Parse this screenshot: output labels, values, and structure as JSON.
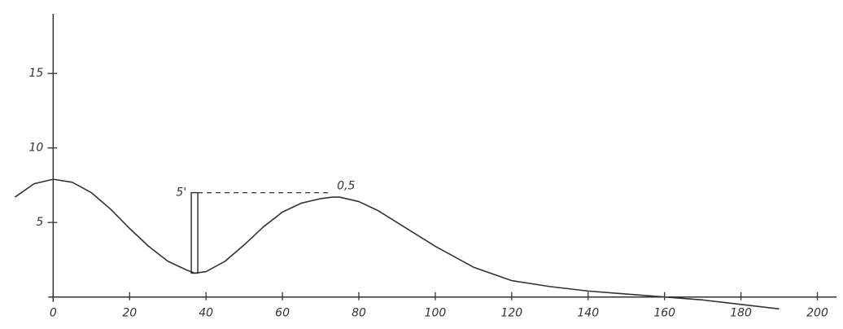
{
  "chart_data": {
    "type": "line",
    "x": [
      -10,
      -5,
      0,
      5,
      10,
      15,
      20,
      25,
      30,
      35,
      37,
      40,
      45,
      50,
      55,
      60,
      65,
      70,
      73,
      75,
      80,
      85,
      90,
      95,
      100,
      110,
      120,
      130,
      140,
      150,
      160,
      170,
      180,
      190
    ],
    "values": [
      6.7,
      7.6,
      7.9,
      7.7,
      7.0,
      5.9,
      4.6,
      3.4,
      2.4,
      1.8,
      1.6,
      1.7,
      2.4,
      3.5,
      4.7,
      5.7,
      6.3,
      6.6,
      6.7,
      6.7,
      6.4,
      5.8,
      5.0,
      4.2,
      3.4,
      2.0,
      1.1,
      0.7,
      0.4,
      0.2,
      0.0,
      -0.2,
      -0.5,
      -0.8
    ],
    "color": "#333333",
    "xlim": [
      -12,
      205
    ],
    "ylim": [
      -1,
      19
    ],
    "xticks": [
      0,
      20,
      40,
      60,
      80,
      100,
      120,
      140,
      160,
      180,
      200
    ],
    "yticks": [
      5,
      10,
      15
    ],
    "grid": false,
    "annotations": [
      {
        "text": "5'",
        "x": 37,
        "y": 7
      },
      {
        "text": "0,5",
        "x": 73,
        "y": 7
      }
    ]
  }
}
